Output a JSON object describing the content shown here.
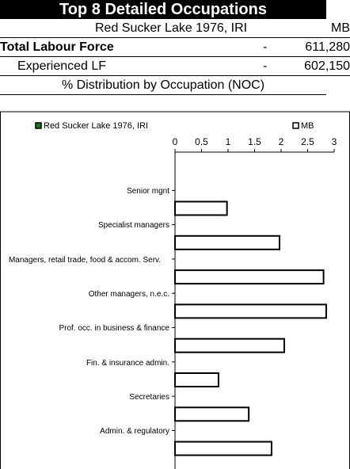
{
  "header": {
    "title": "Top 8 Detailed Occupations",
    "region": "Red Sucker Lake 1976, IRI",
    "province": "MB"
  },
  "rows": [
    {
      "label": "Total Labour Force",
      "region_value": "-",
      "province_value": "611,280"
    },
    {
      "label": "Experienced LF",
      "region_value": "-",
      "province_value": "602,150"
    }
  ],
  "section_title": "% Distribution by Occupation (NOC)",
  "chart_data": {
    "type": "bar",
    "orientation": "horizontal",
    "categories": [
      "Senior mgnt",
      "Specialist managers",
      "Managers, retail trade, food & accom. Serv.",
      "Other managers, n.e.c.",
      "Prof. occ. in business & finance",
      "Fin. & insurance admin.",
      "Secretaries",
      "Admin. & regulatory"
    ],
    "series": [
      {
        "name": "Red Sucker Lake 1976, IRI",
        "color": "#1a7a1a",
        "values": [
          0,
          0,
          0,
          0,
          0,
          0,
          0,
          0
        ]
      },
      {
        "name": "MB",
        "color": "#ffffff",
        "values": [
          0.98,
          1.97,
          2.8,
          2.85,
          2.06,
          0.82,
          1.39,
          1.82
        ]
      }
    ],
    "xlim": [
      0,
      3
    ],
    "xticks": [
      0,
      0.5,
      1,
      1.5,
      2,
      2.5,
      3
    ]
  }
}
